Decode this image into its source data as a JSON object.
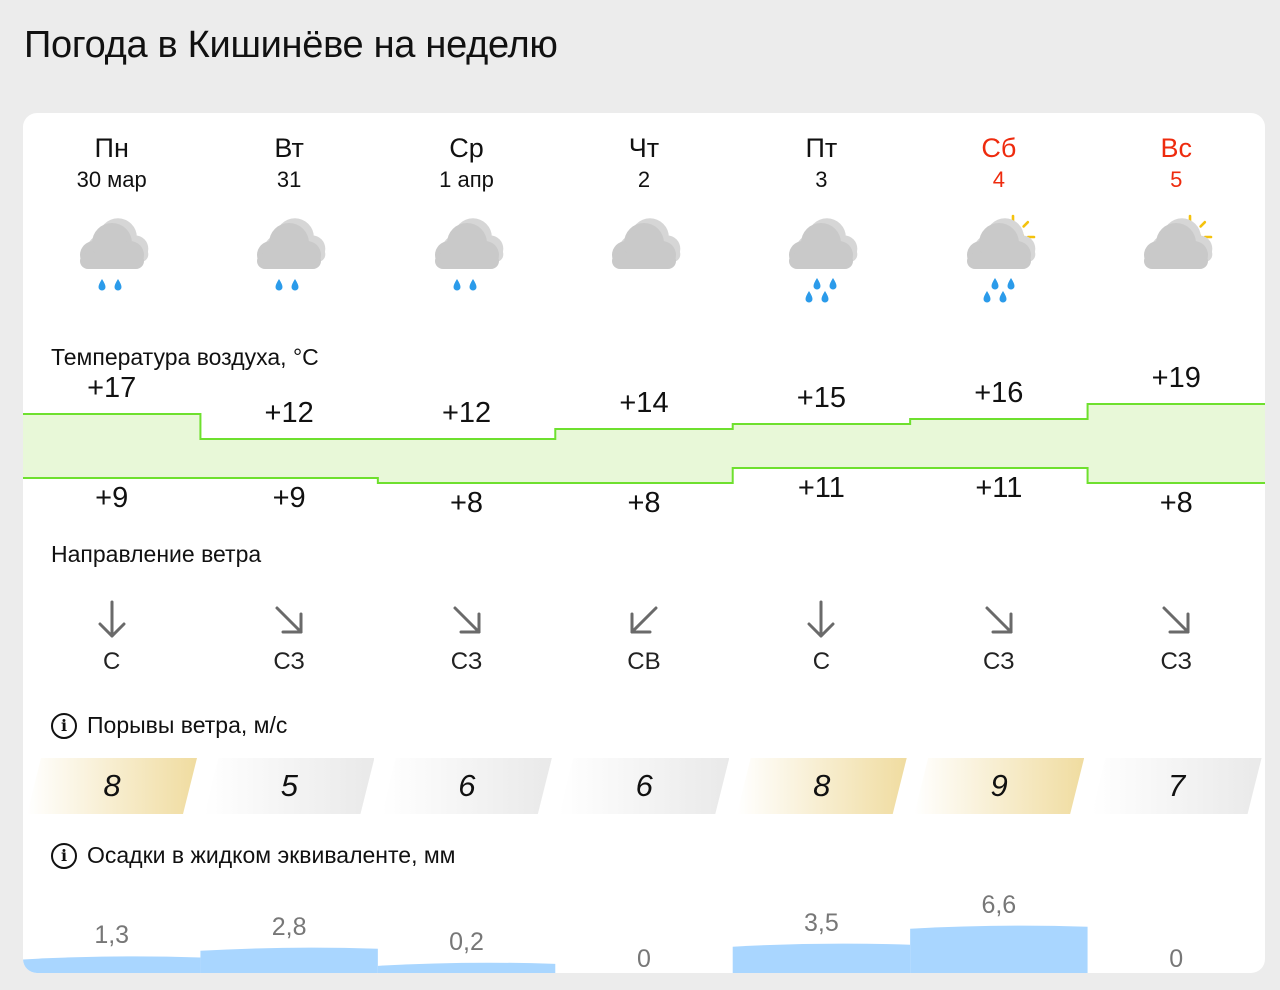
{
  "title": "Погода в Кишинёве на неделю",
  "days": [
    {
      "name": "Пн",
      "date": "30 мар",
      "weekend": false,
      "icon": "cloudy-rain-icon",
      "t_max": "+17",
      "t_min": "+9",
      "wind_dir": "С",
      "wind_icon": "arrow-down-icon",
      "gust": "8",
      "precip": "1,3"
    },
    {
      "name": "Вт",
      "date": "31",
      "weekend": false,
      "icon": "cloudy-rain-icon",
      "t_max": "+12",
      "t_min": "+9",
      "wind_dir": "СЗ",
      "wind_icon": "arrow-down-right-icon",
      "gust": "5",
      "precip": "2,8"
    },
    {
      "name": "Ср",
      "date": "1 апр",
      "weekend": false,
      "icon": "cloudy-rain-icon",
      "t_max": "+12",
      "t_min": "+8",
      "wind_dir": "СЗ",
      "wind_icon": "arrow-down-right-icon",
      "gust": "6",
      "precip": "0,2"
    },
    {
      "name": "Чт",
      "date": "2",
      "weekend": false,
      "icon": "cloudy-icon",
      "t_max": "+14",
      "t_min": "+8",
      "wind_dir": "СВ",
      "wind_icon": "arrow-down-left-icon",
      "gust": "6",
      "precip": "0"
    },
    {
      "name": "Пт",
      "date": "3",
      "weekend": false,
      "icon": "cloudy-heavy-rain-icon",
      "t_max": "+15",
      "t_min": "+11",
      "wind_dir": "С",
      "wind_icon": "arrow-down-icon",
      "gust": "8",
      "precip": "3,5"
    },
    {
      "name": "Сб",
      "date": "4",
      "weekend": true,
      "icon": "partly-cloudy-rain-icon",
      "t_max": "+16",
      "t_min": "+11",
      "wind_dir": "СЗ",
      "wind_icon": "arrow-down-right-icon",
      "gust": "9",
      "precip": "6,6"
    },
    {
      "name": "Вс",
      "date": "5",
      "weekend": true,
      "icon": "partly-cloudy-icon",
      "t_max": "+19",
      "t_min": "+8",
      "wind_dir": "СЗ",
      "wind_icon": "arrow-down-right-icon",
      "gust": "7",
      "precip": "0"
    }
  ],
  "sections": {
    "temperature_label": "Температура воздуха, °C",
    "wind_direction_label": "Направление ветра",
    "gusts_label": "Порывы ветра, м/с",
    "precip_label": "Осадки в жидком эквиваленте, мм"
  },
  "colors": {
    "weekend": "#ee2b0e",
    "temp_line": "#6ee02e",
    "temp_fill": "#e8f8d8",
    "precip_fill": "#a9d6ff",
    "gust_warm": "#f0dca0",
    "gust_neutral": "#e9e9e9"
  },
  "chart_data": [
    {
      "type": "area",
      "categories": [
        "Пн",
        "Вт",
        "Ср",
        "Чт",
        "Пт",
        "Сб",
        "Вс"
      ],
      "series": [
        {
          "name": "max",
          "values": [
            17,
            12,
            12,
            14,
            15,
            16,
            19
          ]
        },
        {
          "name": "min",
          "values": [
            9,
            9,
            8,
            8,
            11,
            11,
            8
          ]
        }
      ]
    },
    {
      "type": "bar",
      "categories": [
        "Пн",
        "Вт",
        "Ср",
        "Чт",
        "Пт",
        "Сб",
        "Вс"
      ],
      "values": [
        8,
        5,
        6,
        6,
        8,
        9,
        7
      ]
    },
    {
      "type": "area",
      "categories": [
        "Пн",
        "Вт",
        "Ср",
        "Чт",
        "Пт",
        "Сб",
        "Вс"
      ],
      "values": [
        1.3,
        2.8,
        0.2,
        0,
        3.5,
        6.6,
        0
      ]
    }
  ]
}
